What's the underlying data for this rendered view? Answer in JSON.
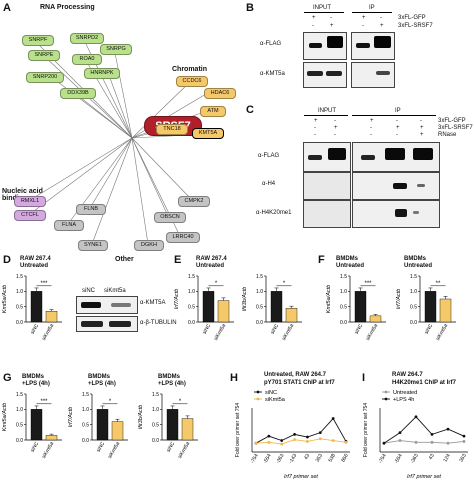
{
  "panelA": {
    "label": "A",
    "hub": "SRSF7",
    "groups": {
      "rna": "RNA Processing",
      "chromatin": "Chromatin",
      "nucleic": "Nucleic acid binding",
      "other": "Other"
    },
    "nodes": {
      "SNRPF": "SNRPF",
      "SNRPD2": "SNRPD2",
      "SNRPG": "SNRPG",
      "ROA0": "ROA0",
      "SNRPE": "SNRPE",
      "HNRNPK": "HNRNPK",
      "SNRP200": "SNRP200",
      "DDX39B": "DDX39B",
      "CCDC6": "CCDC6",
      "HDAC6": "HDAC6",
      "ATM": "ATM",
      "TNC18": "TNC18",
      "KMT5A": "KMT5A",
      "RMXL1": "RMXL1",
      "CTCFL": "CTCFL",
      "FLNB": "FLNB",
      "FLNA": "FLNA",
      "SYNE1": "SYNE1",
      "DGKH": "DGKH",
      "OBSCN": "OBSCN",
      "CMPK2": "CMPK2",
      "LRRC40": "LRRC40"
    },
    "colors": {
      "rna": "#b9e08a",
      "chromatin": "#f5c96a",
      "nucleic": "#d4a9e0",
      "other": "#c4c4c4",
      "hub": "#b0202a"
    }
  },
  "panelB": {
    "label": "B",
    "input": "INPUT",
    "ip": "IP",
    "signs1": [
      "+",
      "-",
      "+",
      "-"
    ],
    "signs2": [
      "-",
      "+",
      "-",
      "+"
    ],
    "row1": "3xFL-GFP",
    "row2": "3xFL-SRSF7",
    "blots": [
      "α-FLAG",
      "α-KMT5a"
    ]
  },
  "panelC": {
    "label": "C",
    "input": "INPUT",
    "ip": "IP",
    "signsGFP": [
      "+",
      "-",
      "+",
      "-",
      "-"
    ],
    "signsSRSF7": [
      "-",
      "+",
      "-",
      "+",
      "+"
    ],
    "signsRNase": [
      "-",
      "-",
      "-",
      "-",
      "+"
    ],
    "row1": "3xFL-GFP",
    "row2": "3xFL-SRSF7",
    "row3": "RNase",
    "blots": [
      "α-FLAG",
      "α-H4",
      "α-H4K20me1"
    ]
  },
  "panelD": {
    "label": "D",
    "title1": "RAW 267.4",
    "title2": "Untreated",
    "ylabel": "Kmt5a/Actb",
    "ticks": [
      "0.0",
      "0.5",
      "1.0",
      "1.5"
    ],
    "sig": "***",
    "blot_header1": "siNC",
    "blot_header2": "siKmt5a",
    "blots": [
      "α-KMT5A",
      "α-β-TUBULIN"
    ]
  },
  "panelE": {
    "label": "E",
    "title1": "RAW 267.4",
    "title2": "Untreated",
    "ylabels": [
      "Irf7/Actb",
      "Ifit3b/Actb"
    ],
    "ticks": [
      "0.0",
      "0.5",
      "1.0",
      "1.5"
    ],
    "sig": [
      "*",
      "*"
    ]
  },
  "panelF": {
    "label": "F",
    "title1": "BMDMs",
    "title2": "Untreated",
    "ylabels": [
      "Kmt5a/Actb",
      "Irf7/Actb"
    ],
    "ticks": [
      "0.0",
      "0.5",
      "1.0",
      "1.5"
    ],
    "sig": [
      "***",
      "**"
    ]
  },
  "panelG": {
    "label": "G",
    "title1": "BMDMs",
    "title2": "+LPS (4h)",
    "ylabels": [
      "Kmt5a/Actb",
      "Irf7/Actb",
      "Ifit3b/Actb"
    ],
    "ticks": [
      "0.0",
      "0.5",
      "1.0",
      "1.5"
    ],
    "sig": [
      "***",
      "*",
      "*"
    ]
  },
  "panelH": {
    "label": "H",
    "title1": "Untreated, RAW 264.7",
    "title2": "pY701 STAT1 ChIP at Irf7",
    "ylabel": "Fold over primer set 754",
    "xlabel": "Irf7 primer set",
    "legend": [
      "siNC",
      "siKmt5a"
    ]
  },
  "panelI": {
    "label": "I",
    "title1": "RAW 264.7",
    "title2": "H4K20me1 ChIP at Irf7",
    "ylabel": "Fold over primer set 754",
    "xlabel": "Irf7 primer set",
    "legend": [
      "Untreated",
      "+LPS 4h"
    ]
  },
  "categories": [
    "siNC",
    "siKmt5a"
  ],
  "chart_data": [
    {
      "type": "bar",
      "title": "D",
      "categories": [
        "siNC",
        "siKmt5a"
      ],
      "values": [
        1.0,
        0.35
      ],
      "ylabel": "Kmt5a/Actb",
      "ylim": [
        0,
        1.5
      ]
    },
    {
      "type": "bar",
      "title": "E-1",
      "categories": [
        "siNC",
        "siKmt5a"
      ],
      "values": [
        1.0,
        0.7
      ],
      "ylabel": "Irf7/Actb",
      "ylim": [
        0,
        1.5
      ]
    },
    {
      "type": "bar",
      "title": "E-2",
      "categories": [
        "siNC",
        "siKmt5a"
      ],
      "values": [
        1.0,
        0.45
      ],
      "ylabel": "Ifit3b/Actb",
      "ylim": [
        0,
        1.5
      ]
    },
    {
      "type": "bar",
      "title": "F-1",
      "categories": [
        "siNC",
        "siKmt5a"
      ],
      "values": [
        1.0,
        0.2
      ],
      "ylabel": "Kmt5a/Actb",
      "ylim": [
        0,
        1.5
      ]
    },
    {
      "type": "bar",
      "title": "F-2",
      "categories": [
        "siNC",
        "siKmt5a"
      ],
      "values": [
        1.0,
        0.75
      ],
      "ylabel": "Irf7/Actb",
      "ylim": [
        0,
        1.5
      ]
    },
    {
      "type": "bar",
      "title": "G-1",
      "categories": [
        "siNC",
        "siKmt5a"
      ],
      "values": [
        1.0,
        0.15
      ],
      "ylabel": "Kmt5a/Actb",
      "ylim": [
        0,
        1.5
      ]
    },
    {
      "type": "bar",
      "title": "G-2",
      "categories": [
        "siNC",
        "siKmt5a"
      ],
      "values": [
        1.0,
        0.6
      ],
      "ylabel": "Irf7/Actb",
      "ylim": [
        0,
        1.5
      ]
    },
    {
      "type": "bar",
      "title": "G-3",
      "categories": [
        "siNC",
        "siKmt5a"
      ],
      "values": [
        1.0,
        0.7
      ],
      "ylabel": "Ifit3b/Actb",
      "ylim": [
        0,
        1.5
      ]
    },
    {
      "type": "line",
      "title": "H",
      "x": [
        "-754",
        "-554",
        "-363",
        "-143",
        "43",
        "353",
        "538",
        "856"
      ],
      "series": [
        {
          "name": "siNC",
          "values": [
            1.0,
            1.8,
            1.3,
            2.0,
            1.7,
            2.2,
            3.8,
            1.2
          ]
        },
        {
          "name": "siKmt5a",
          "values": [
            1.0,
            1.1,
            0.9,
            1.4,
            1.2,
            1.5,
            1.3,
            1.1
          ]
        }
      ],
      "ylim": [
        0,
        5
      ]
    },
    {
      "type": "line",
      "title": "I",
      "x": [
        "-754",
        "-554",
        "-363",
        "43",
        "124",
        "353"
      ],
      "series": [
        {
          "name": "Untreated",
          "values": [
            1.0,
            1.3,
            1.1,
            1.1,
            1.0,
            1.2
          ]
        },
        {
          "name": "+LPS 4h",
          "values": [
            1.0,
            2.2,
            4.0,
            2.0,
            2.6,
            1.8
          ]
        }
      ],
      "ylim": [
        0,
        5
      ]
    }
  ]
}
